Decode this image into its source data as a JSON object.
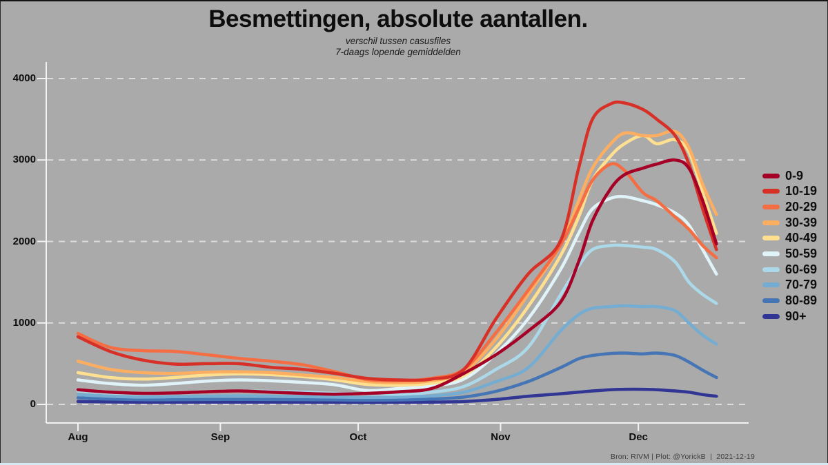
{
  "header": {
    "title": "Besmettingen, absolute aantallen.",
    "subtitle_line1": "verschil tussen casusfiles",
    "subtitle_line2": "7-daags lopende gemiddelden"
  },
  "footer": {
    "credit": "Bron: RIVM | Plot: @YorickB  |  2021-12-19"
  },
  "colors": {
    "background": "#aaaaaa",
    "axis": "#f2f2f2",
    "gridline": "#dcdcdc",
    "text": "#0d0d0d",
    "footer_text": "#3c3c3c"
  },
  "chart_data": {
    "type": "line",
    "title": "Besmettingen, absolute aantallen.",
    "subtitle": "verschil tussen casusfiles / 7-daags lopende gemiddelden",
    "xlabel": "",
    "ylabel": "",
    "x_unit": "days since Aug 1 (2021)",
    "x_tick_labels": [
      "Aug",
      "Sep",
      "Oct",
      "Nov",
      "Dec"
    ],
    "x_tick_days": [
      0,
      31,
      61,
      92,
      122
    ],
    "y_ticks": [
      0,
      1000,
      2000,
      3000,
      4000
    ],
    "ylim": [
      0,
      4000
    ],
    "grid": "horizontal white dashed",
    "legend_position": "right",
    "x": [
      0,
      7,
      14,
      21,
      28,
      35,
      42,
      49,
      56,
      63,
      70,
      77,
      84,
      91,
      98,
      105,
      109,
      112,
      116,
      119,
      123,
      126,
      130,
      133,
      136,
      139
    ],
    "series": [
      {
        "name": "0-9",
        "color": "#a50026",
        "values": [
          180,
          150,
          135,
          140,
          155,
          165,
          150,
          135,
          125,
          135,
          155,
          195,
          380,
          610,
          900,
          1250,
          1750,
          2250,
          2650,
          2820,
          2900,
          2950,
          3000,
          2900,
          2500,
          1970
        ]
      },
      {
        "name": "10-19",
        "color": "#d73027",
        "values": [
          830,
          650,
          545,
          495,
          500,
          500,
          455,
          430,
          380,
          320,
          300,
          310,
          430,
          1050,
          1600,
          2000,
          2900,
          3500,
          3690,
          3700,
          3620,
          3500,
          3300,
          2950,
          2400,
          1900
        ]
      },
      {
        "name": "20-29",
        "color": "#f46d43",
        "values": [
          870,
          700,
          660,
          650,
          610,
          565,
          530,
          485,
          400,
          305,
          290,
          320,
          430,
          880,
          1400,
          1950,
          2400,
          2750,
          2950,
          2870,
          2600,
          2500,
          2300,
          2150,
          1950,
          1800
        ]
      },
      {
        "name": "30-39",
        "color": "#fdae61",
        "values": [
          530,
          430,
          390,
          380,
          395,
          400,
          390,
          360,
          330,
          280,
          265,
          290,
          400,
          800,
          1350,
          1950,
          2500,
          2900,
          3200,
          3330,
          3300,
          3300,
          3350,
          3150,
          2700,
          2330
        ]
      },
      {
        "name": "40-49",
        "color": "#fee090",
        "values": [
          390,
          330,
          310,
          330,
          360,
          375,
          365,
          340,
          300,
          245,
          235,
          260,
          350,
          700,
          1200,
          1820,
          2300,
          2750,
          3050,
          3200,
          3300,
          3200,
          3250,
          3100,
          2600,
          2100
        ]
      },
      {
        "name": "50-59",
        "color": "#e0f3f8",
        "values": [
          300,
          255,
          235,
          255,
          285,
          300,
          290,
          270,
          240,
          170,
          195,
          225,
          310,
          620,
          1050,
          1650,
          2100,
          2400,
          2530,
          2550,
          2500,
          2450,
          2350,
          2200,
          1900,
          1600
        ]
      },
      {
        "name": "60-69",
        "color": "#abd9e9",
        "values": [
          165,
          140,
          130,
          140,
          155,
          165,
          160,
          150,
          135,
          130,
          125,
          150,
          220,
          430,
          700,
          1340,
          1700,
          1900,
          1950,
          1950,
          1930,
          1900,
          1750,
          1500,
          1350,
          1240
        ]
      },
      {
        "name": "70-79",
        "color": "#74add1",
        "values": [
          120,
          100,
          90,
          95,
          100,
          105,
          100,
          95,
          90,
          85,
          90,
          105,
          150,
          280,
          450,
          900,
          1100,
          1180,
          1200,
          1210,
          1200,
          1200,
          1150,
          1000,
          850,
          740
        ]
      },
      {
        "name": "80-89",
        "color": "#4575b4",
        "values": [
          80,
          65,
          58,
          58,
          60,
          62,
          60,
          58,
          55,
          52,
          55,
          65,
          90,
          160,
          280,
          450,
          560,
          600,
          625,
          630,
          620,
          630,
          600,
          520,
          420,
          330
        ]
      },
      {
        "name": "90+",
        "color": "#313695",
        "values": [
          35,
          30,
          26,
          26,
          27,
          28,
          27,
          26,
          25,
          24,
          25,
          28,
          35,
          60,
          100,
          130,
          150,
          165,
          180,
          185,
          185,
          180,
          165,
          150,
          120,
          100
        ]
      }
    ]
  }
}
